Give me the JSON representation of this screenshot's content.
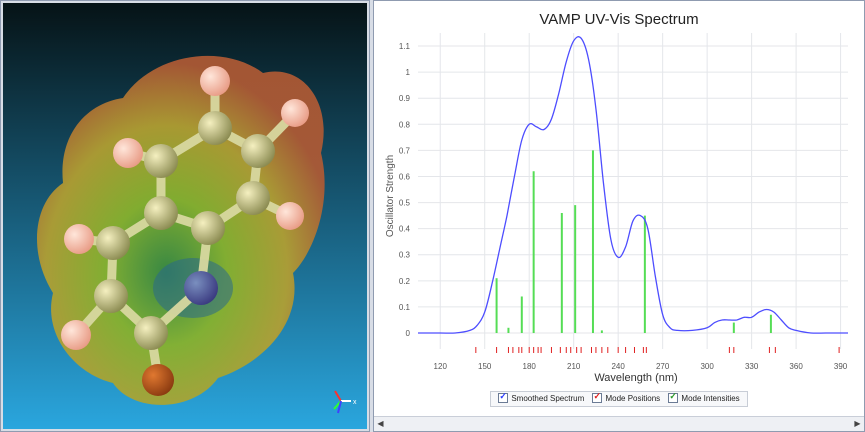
{
  "molecule_view": {
    "name": "Molecule 3D viewer",
    "colors": {
      "bg_top": "#061316",
      "bg_bottom": "#2aa6de"
    },
    "axes_icon": "axes-triad-icon"
  },
  "spectrum": {
    "legend": {
      "smoothed": "Smoothed Spectrum",
      "positions": "Mode Positions",
      "intensities": "Mode Intensities"
    },
    "colors": {
      "curve": "#4d4dff",
      "positions": "#e02020",
      "intensities": "#55dd55"
    },
    "scroll_left_icon": "scroll-left-arrow-icon",
    "scroll_right_icon": "scroll-right-arrow-icon"
  },
  "chart_data": {
    "type": "line",
    "title": "VAMP UV-Vis Spectrum",
    "xlabel": "Wavelength (nm)",
    "ylabel": "Oscillator Strength",
    "xlim": [
      105,
      395
    ],
    "ylim": [
      0,
      1.15
    ],
    "x_ticks": [
      120,
      150,
      180,
      210,
      240,
      270,
      300,
      330,
      360,
      390
    ],
    "y_ticks": [
      0,
      0.1,
      0.2,
      0.3,
      0.4,
      0.5,
      0.6,
      0.7,
      0.8,
      0.9,
      1,
      1.1
    ],
    "series": [
      {
        "name": "Smoothed Spectrum",
        "x": [
          105,
          120,
          130,
          140,
          145,
          150,
          155,
          160,
          165,
          170,
          175,
          180,
          185,
          190,
          195,
          200,
          205,
          210,
          215,
          220,
          225,
          230,
          235,
          240,
          245,
          250,
          255,
          260,
          265,
          270,
          275,
          280,
          290,
          300,
          305,
          310,
          315,
          320,
          325,
          330,
          335,
          340,
          345,
          350,
          355,
          360,
          370,
          380,
          390,
          395
        ],
        "y": [
          0,
          0,
          0,
          0.01,
          0.03,
          0.08,
          0.19,
          0.32,
          0.45,
          0.6,
          0.74,
          0.8,
          0.79,
          0.78,
          0.82,
          0.92,
          1.04,
          1.12,
          1.13,
          1.05,
          0.86,
          0.58,
          0.36,
          0.29,
          0.33,
          0.43,
          0.45,
          0.4,
          0.22,
          0.07,
          0.02,
          0.01,
          0.01,
          0.02,
          0.04,
          0.05,
          0.05,
          0.05,
          0.06,
          0.06,
          0.08,
          0.09,
          0.08,
          0.05,
          0.02,
          0.01,
          0,
          0,
          0,
          0
        ]
      },
      {
        "name": "Mode Intensities",
        "x": [
          158,
          166,
          175,
          183,
          202,
          211,
          223,
          229,
          258,
          318,
          343
        ],
        "y": [
          0.21,
          0.02,
          0.14,
          0.62,
          0.46,
          0.49,
          0.7,
          0.01,
          0.45,
          0.04,
          0.07
        ]
      },
      {
        "name": "Mode Positions",
        "x": [
          144,
          158,
          166,
          169,
          173,
          175,
          180,
          183,
          186,
          188,
          195,
          201,
          205,
          208,
          212,
          215,
          222,
          225,
          229,
          233,
          240,
          245,
          251,
          257,
          259,
          315,
          318,
          342,
          346,
          389
        ]
      }
    ]
  }
}
